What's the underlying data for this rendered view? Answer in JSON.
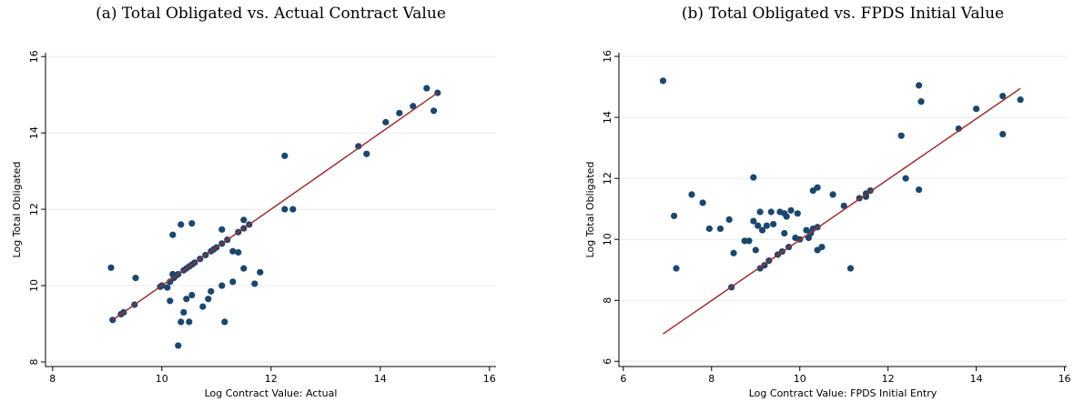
{
  "chart_data": [
    {
      "type": "scatter",
      "title": "(a) Total Obligated vs. Actual Contract Value",
      "xlabel": "Log Contract Value: Actual",
      "ylabel": "Log Total Obligated",
      "xlim": [
        7.87,
        16.12
      ],
      "ylim": [
        7.88,
        16.1
      ],
      "xticks": [
        8,
        10,
        12,
        14,
        16
      ],
      "yticks": [
        8,
        10,
        12,
        14,
        16
      ],
      "grid": true,
      "color": "#1a476f",
      "x": [
        9.07,
        9.1,
        9.25,
        9.3,
        9.5,
        9.52,
        9.97,
        10.0,
        10.1,
        10.15,
        10.15,
        10.2,
        10.2,
        10.22,
        10.25,
        10.3,
        10.3,
        10.35,
        10.35,
        10.4,
        10.4,
        10.45,
        10.45,
        10.5,
        10.5,
        10.55,
        10.55,
        10.55,
        10.6,
        10.7,
        10.75,
        10.8,
        10.85,
        10.9,
        10.9,
        10.95,
        11.0,
        11.1,
        11.1,
        11.1,
        11.15,
        11.2,
        11.3,
        11.3,
        11.4,
        11.4,
        11.5,
        11.5,
        11.5,
        11.6,
        11.7,
        11.8,
        12.25,
        12.25,
        12.4,
        13.6,
        13.75,
        14.1,
        14.35,
        14.6,
        14.85,
        14.98,
        15.05
      ],
      "values": [
        10.47,
        9.1,
        9.25,
        9.3,
        9.5,
        10.2,
        9.97,
        10.0,
        9.95,
        9.6,
        10.1,
        10.3,
        11.33,
        10.2,
        10.25,
        8.43,
        10.3,
        11.6,
        9.05,
        10.4,
        9.3,
        9.65,
        10.45,
        9.05,
        10.5,
        11.63,
        10.55,
        9.75,
        10.6,
        10.7,
        9.45,
        10.8,
        9.65,
        10.9,
        9.85,
        10.95,
        11.0,
        11.47,
        10.0,
        11.1,
        9.05,
        11.2,
        10.1,
        10.9,
        10.87,
        11.4,
        11.5,
        10.45,
        11.72,
        11.6,
        10.05,
        10.35,
        13.4,
        12.0,
        12.0,
        13.65,
        13.45,
        14.28,
        14.52,
        14.7,
        15.17,
        14.58,
        15.05
      ],
      "fit": {
        "color": "#a03030",
        "x": [
          9.1,
          15.05
        ],
        "y": [
          9.1,
          15.05
        ]
      }
    },
    {
      "type": "scatter",
      "title": "(b) Total Obligated vs. FPDS Initial Value",
      "xlabel": "Log Contract Value: FPDS Initial Entry",
      "ylabel": "Log Total Obligated",
      "xlim": [
        5.9,
        16.05
      ],
      "ylim": [
        5.83,
        16.12
      ],
      "xticks": [
        6,
        8,
        10,
        12,
        14,
        16
      ],
      "yticks": [
        6,
        8,
        10,
        12,
        14,
        16
      ],
      "grid": true,
      "color": "#1a476f",
      "x": [
        6.9,
        7.15,
        7.2,
        7.55,
        7.8,
        7.95,
        8.2,
        8.4,
        8.45,
        8.5,
        8.75,
        8.85,
        8.95,
        8.95,
        9.0,
        9.05,
        9.1,
        9.1,
        9.15,
        9.2,
        9.25,
        9.3,
        9.35,
        9.4,
        9.5,
        9.55,
        9.6,
        9.65,
        9.65,
        9.7,
        9.75,
        9.8,
        9.9,
        9.95,
        10.0,
        10.15,
        10.2,
        10.25,
        10.3,
        10.3,
        10.4,
        10.4,
        10.4,
        10.5,
        10.75,
        11.0,
        11.15,
        11.35,
        11.5,
        11.5,
        11.6,
        12.3,
        12.4,
        12.7,
        12.7,
        12.75,
        13.6,
        14.0,
        14.6,
        14.6,
        15.0
      ],
      "values": [
        15.2,
        10.77,
        9.05,
        11.47,
        11.2,
        10.35,
        10.35,
        10.65,
        8.43,
        9.55,
        9.95,
        9.95,
        12.03,
        10.6,
        9.65,
        10.45,
        9.05,
        10.9,
        10.3,
        9.15,
        10.45,
        9.3,
        10.9,
        10.5,
        9.5,
        10.9,
        9.6,
        10.85,
        10.2,
        10.75,
        9.75,
        10.95,
        10.05,
        10.85,
        10.0,
        10.3,
        10.05,
        10.2,
        10.35,
        11.6,
        10.4,
        11.7,
        9.65,
        9.75,
        11.47,
        11.1,
        9.05,
        11.35,
        11.5,
        11.4,
        11.6,
        13.4,
        12.0,
        15.05,
        11.63,
        14.52,
        13.63,
        14.28,
        13.45,
        14.7,
        14.58
      ],
      "fit": {
        "color": "#a03030",
        "x": [
          6.9,
          15.0
        ],
        "y": [
          6.9,
          14.95
        ]
      }
    }
  ]
}
